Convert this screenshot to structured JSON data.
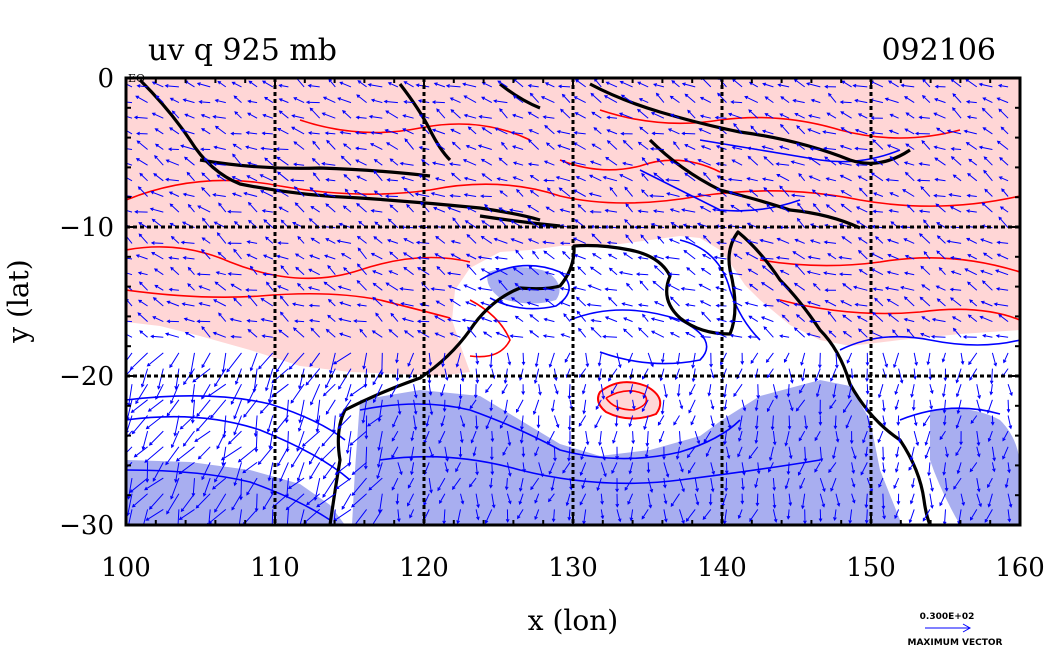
{
  "chart_data": {
    "type": "contour",
    "title": "uv q 925 mb",
    "subtitle": "092106",
    "xlabel": "x (lon)",
    "ylabel": "y (lat)",
    "xlim": [
      100,
      160
    ],
    "ylim": [
      -30,
      0
    ],
    "x_ticks": [
      100,
      110,
      120,
      130,
      140,
      150,
      160
    ],
    "y_ticks": [
      0,
      -10,
      -20,
      -30
    ],
    "x_tick_labels": [
      "100",
      "110",
      "120",
      "130",
      "140",
      "150",
      "160"
    ],
    "y_tick_labels": [
      "0",
      "−10",
      "−20",
      "−30"
    ],
    "corner_label": "EQ",
    "grid": true,
    "positive_contour_color": "#ff0000",
    "negative_contour_color": "#0000ff",
    "positive_fill_color": "#ffd6d6",
    "negative_fill_color": "#a8aef0",
    "coastline_color": "#000000",
    "vector_color": "#0000ff",
    "reference_vector": {
      "value_label": "0.300E+02",
      "caption": "MAXIMUM VECTOR"
    }
  }
}
